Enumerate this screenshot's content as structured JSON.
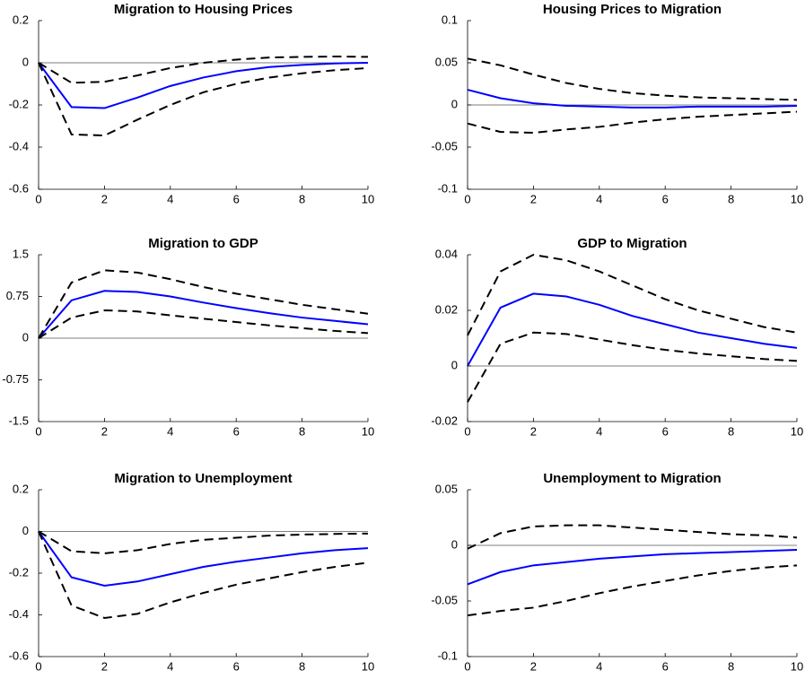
{
  "chart_data": [
    {
      "type": "line",
      "title": "Migration to Housing Prices",
      "x": [
        0,
        1,
        2,
        3,
        4,
        5,
        6,
        7,
        8,
        9,
        10
      ],
      "xlim": [
        0,
        10
      ],
      "xticks": [
        0,
        2,
        4,
        6,
        8,
        10
      ],
      "ylim": [
        -0.6,
        0.2
      ],
      "yticks": [
        -0.6,
        -0.4,
        -0.2,
        0,
        0.2
      ],
      "zero_line": true,
      "series": [
        {
          "color": "#0000ff",
          "dashed": false,
          "values": [
            0,
            -0.21,
            -0.215,
            -0.165,
            -0.11,
            -0.07,
            -0.04,
            -0.02,
            -0.01,
            -0.003,
            0
          ]
        },
        {
          "color": "#000000",
          "dashed": true,
          "values": [
            0,
            -0.095,
            -0.09,
            -0.06,
            -0.025,
            0,
            0.015,
            0.025,
            0.028,
            0.03,
            0.028
          ]
        },
        {
          "color": "#000000",
          "dashed": true,
          "values": [
            0,
            -0.34,
            -0.345,
            -0.27,
            -0.2,
            -0.14,
            -0.1,
            -0.07,
            -0.05,
            -0.035,
            -0.025
          ]
        }
      ]
    },
    {
      "type": "line",
      "title": "Housing Prices to Migration",
      "x": [
        0,
        1,
        2,
        3,
        4,
        5,
        6,
        7,
        8,
        9,
        10
      ],
      "xlim": [
        0,
        10
      ],
      "xticks": [
        0,
        2,
        4,
        6,
        8,
        10
      ],
      "ylim": [
        -0.1,
        0.1
      ],
      "yticks": [
        -0.1,
        -0.05,
        0,
        0.05,
        0.1
      ],
      "zero_line": true,
      "series": [
        {
          "color": "#0000ff",
          "dashed": false,
          "values": [
            0.018,
            0.008,
            0.002,
            -0.001,
            -0.002,
            -0.003,
            -0.003,
            -0.002,
            -0.002,
            -0.002,
            -0.001
          ]
        },
        {
          "color": "#000000",
          "dashed": true,
          "values": [
            0.055,
            0.047,
            0.036,
            0.026,
            0.019,
            0.014,
            0.011,
            0.009,
            0.008,
            0.007,
            0.006
          ]
        },
        {
          "color": "#000000",
          "dashed": true,
          "values": [
            -0.022,
            -0.032,
            -0.033,
            -0.029,
            -0.026,
            -0.021,
            -0.017,
            -0.014,
            -0.012,
            -0.01,
            -0.008
          ]
        }
      ]
    },
    {
      "type": "line",
      "title": "Migration to GDP",
      "x": [
        0,
        1,
        2,
        3,
        4,
        5,
        6,
        7,
        8,
        9,
        10
      ],
      "xlim": [
        0,
        10
      ],
      "xticks": [
        0,
        2,
        4,
        6,
        8,
        10
      ],
      "ylim": [
        -1.5,
        1.5
      ],
      "yticks": [
        -1.5,
        -0.75,
        0,
        0.75,
        1.5
      ],
      "zero_line": true,
      "series": [
        {
          "color": "#0000ff",
          "dashed": false,
          "values": [
            0,
            0.68,
            0.85,
            0.83,
            0.75,
            0.64,
            0.54,
            0.45,
            0.37,
            0.31,
            0.25
          ]
        },
        {
          "color": "#000000",
          "dashed": true,
          "values": [
            0,
            1.0,
            1.22,
            1.18,
            1.06,
            0.92,
            0.8,
            0.7,
            0.6,
            0.52,
            0.44
          ]
        },
        {
          "color": "#000000",
          "dashed": true,
          "values": [
            0,
            0.37,
            0.5,
            0.48,
            0.41,
            0.35,
            0.29,
            0.23,
            0.18,
            0.13,
            0.09
          ]
        }
      ]
    },
    {
      "type": "line",
      "title": "GDP to Migration",
      "x": [
        0,
        1,
        2,
        3,
        4,
        5,
        6,
        7,
        8,
        9,
        10
      ],
      "xlim": [
        0,
        10
      ],
      "xticks": [
        0,
        2,
        4,
        6,
        8,
        10
      ],
      "ylim": [
        -0.02,
        0.04
      ],
      "yticks": [
        -0.02,
        0,
        0.02,
        0.04
      ],
      "zero_line": true,
      "series": [
        {
          "color": "#0000ff",
          "dashed": false,
          "values": [
            0,
            0.021,
            0.026,
            0.025,
            0.022,
            0.018,
            0.015,
            0.012,
            0.01,
            0.008,
            0.0065
          ]
        },
        {
          "color": "#000000",
          "dashed": true,
          "values": [
            0.011,
            0.034,
            0.04,
            0.038,
            0.034,
            0.029,
            0.024,
            0.02,
            0.017,
            0.014,
            0.012
          ]
        },
        {
          "color": "#000000",
          "dashed": true,
          "values": [
            -0.013,
            0.008,
            0.012,
            0.0115,
            0.0095,
            0.0075,
            0.0058,
            0.0045,
            0.0035,
            0.0025,
            0.0018
          ]
        }
      ]
    },
    {
      "type": "line",
      "title": "Migration to Unemployment",
      "x": [
        0,
        1,
        2,
        3,
        4,
        5,
        6,
        7,
        8,
        9,
        10
      ],
      "xlim": [
        0,
        10
      ],
      "xticks": [
        0,
        2,
        4,
        6,
        8,
        10
      ],
      "ylim": [
        -0.6,
        0.2
      ],
      "yticks": [
        -0.6,
        -0.4,
        -0.2,
        0,
        0.2
      ],
      "zero_line": true,
      "series": [
        {
          "color": "#0000ff",
          "dashed": false,
          "values": [
            0,
            -0.22,
            -0.26,
            -0.24,
            -0.205,
            -0.17,
            -0.145,
            -0.125,
            -0.105,
            -0.09,
            -0.08
          ]
        },
        {
          "color": "#000000",
          "dashed": true,
          "values": [
            0,
            -0.095,
            -0.105,
            -0.09,
            -0.06,
            -0.04,
            -0.03,
            -0.02,
            -0.015,
            -0.012,
            -0.01
          ]
        },
        {
          "color": "#000000",
          "dashed": true,
          "values": [
            0,
            -0.355,
            -0.415,
            -0.395,
            -0.34,
            -0.295,
            -0.255,
            -0.225,
            -0.195,
            -0.17,
            -0.15
          ]
        }
      ]
    },
    {
      "type": "line",
      "title": "Unemployment to Migration",
      "x": [
        0,
        1,
        2,
        3,
        4,
        5,
        6,
        7,
        8,
        9,
        10
      ],
      "xlim": [
        0,
        10
      ],
      "xticks": [
        0,
        2,
        4,
        6,
        8,
        10
      ],
      "ylim": [
        -0.1,
        0.05
      ],
      "yticks": [
        -0.1,
        -0.05,
        0,
        0.05
      ],
      "zero_line": true,
      "series": [
        {
          "color": "#0000ff",
          "dashed": false,
          "values": [
            -0.035,
            -0.024,
            -0.018,
            -0.015,
            -0.012,
            -0.01,
            -0.008,
            -0.007,
            -0.006,
            -0.005,
            -0.004
          ]
        },
        {
          "color": "#000000",
          "dashed": true,
          "values": [
            -0.003,
            0.011,
            0.017,
            0.018,
            0.018,
            0.016,
            0.014,
            0.012,
            0.01,
            0.009,
            0.007
          ]
        },
        {
          "color": "#000000",
          "dashed": true,
          "values": [
            -0.063,
            -0.059,
            -0.056,
            -0.05,
            -0.043,
            -0.037,
            -0.032,
            -0.027,
            -0.023,
            -0.02,
            -0.018
          ]
        }
      ]
    }
  ]
}
